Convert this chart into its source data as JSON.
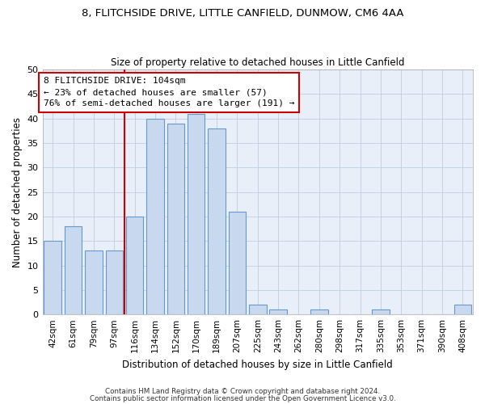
{
  "title1": "8, FLITCHSIDE DRIVE, LITTLE CANFIELD, DUNMOW, CM6 4AA",
  "title2": "Size of property relative to detached houses in Little Canfield",
  "xlabel": "Distribution of detached houses by size in Little Canfield",
  "ylabel": "Number of detached properties",
  "categories": [
    "42sqm",
    "61sqm",
    "79sqm",
    "97sqm",
    "116sqm",
    "134sqm",
    "152sqm",
    "170sqm",
    "189sqm",
    "207sqm",
    "225sqm",
    "243sqm",
    "262sqm",
    "280sqm",
    "298sqm",
    "317sqm",
    "335sqm",
    "353sqm",
    "371sqm",
    "390sqm",
    "408sqm"
  ],
  "values": [
    15,
    18,
    13,
    13,
    20,
    40,
    39,
    41,
    38,
    21,
    2,
    1,
    0,
    1,
    0,
    0,
    1,
    0,
    0,
    0,
    2
  ],
  "bar_color": "#c8d8ee",
  "bar_edge_color": "#6699cc",
  "vline_x_index": 4,
  "vline_color": "#cc0000",
  "annotation_line1": "8 FLITCHSIDE DRIVE: 104sqm",
  "annotation_line2": "← 23% of detached houses are smaller (57)",
  "annotation_line3": "76% of semi-detached houses are larger (191) →",
  "annotation_box_color": "#ffffff",
  "annotation_box_edge_color": "#cc0000",
  "ylim": [
    0,
    50
  ],
  "yticks": [
    0,
    5,
    10,
    15,
    20,
    25,
    30,
    35,
    40,
    45,
    50
  ],
  "footer1": "Contains HM Land Registry data © Crown copyright and database right 2024.",
  "footer2": "Contains public sector information licensed under the Open Government Licence v3.0.",
  "bg_color": "#ffffff",
  "plot_bg_color": "#e8eff8",
  "grid_color": "#c0cce0"
}
